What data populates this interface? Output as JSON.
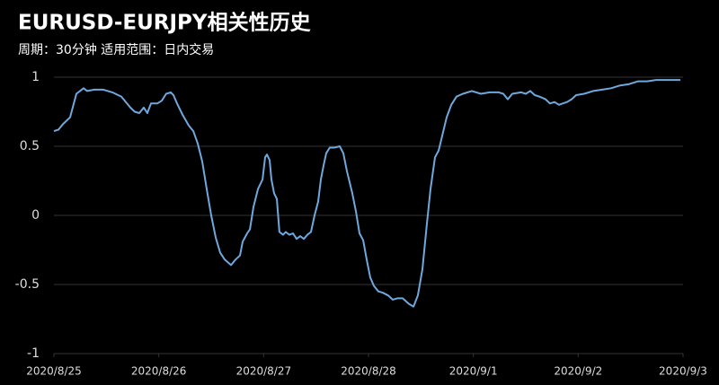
{
  "chart_data": {
    "type": "line",
    "title": "EURUSD-EURJPY相关性历史",
    "subtitle": "周期：30分钟 适用范围：日内交易",
    "color": "#6fa8dc",
    "background": "#000000",
    "grid": true,
    "xlim": [
      0,
      6
    ],
    "xticks": [
      {
        "value": 0,
        "label": "2020/8/25"
      },
      {
        "value": 1,
        "label": "2020/8/26"
      },
      {
        "value": 2,
        "label": "2020/8/27"
      },
      {
        "value": 3,
        "label": "2020/8/28"
      },
      {
        "value": 4,
        "label": "2020/9/1"
      },
      {
        "value": 5,
        "label": "2020/9/2"
      },
      {
        "value": 6,
        "label": "2020/9/3"
      }
    ],
    "ylim": [
      -1,
      1
    ],
    "yticks": [
      -1,
      -0.5,
      0,
      0.5,
      1
    ],
    "x": [
      0,
      0.043,
      0.086,
      0.154,
      0.214,
      0.283,
      0.317,
      0.386,
      0.471,
      0.557,
      0.643,
      0.686,
      0.729,
      0.771,
      0.814,
      0.857,
      0.891,
      0.926,
      0.986,
      1.029,
      1.071,
      1.114,
      1.14,
      1.174,
      1.226,
      1.286,
      1.329,
      1.371,
      1.414,
      1.457,
      1.5,
      1.543,
      1.586,
      1.629,
      1.689,
      1.731,
      1.774,
      1.8,
      1.843,
      1.869,
      1.903,
      1.946,
      1.989,
      2.014,
      2.031,
      2.057,
      2.074,
      2.1,
      2.126,
      2.151,
      2.186,
      2.211,
      2.246,
      2.28,
      2.314,
      2.349,
      2.383,
      2.417,
      2.451,
      2.486,
      2.52,
      2.546,
      2.571,
      2.597,
      2.631,
      2.674,
      2.726,
      2.76,
      2.794,
      2.846,
      2.88,
      2.914,
      2.949,
      2.983,
      3.017,
      3.051,
      3.094,
      3.137,
      3.189,
      3.231,
      3.274,
      3.326,
      3.386,
      3.429,
      3.471,
      3.514,
      3.557,
      3.591,
      3.634,
      3.669,
      3.711,
      3.746,
      3.789,
      3.84,
      3.9,
      3.986,
      4.071,
      4.157,
      4.243,
      4.286,
      4.329,
      4.371,
      4.457,
      4.5,
      4.543,
      4.586,
      4.629,
      4.689,
      4.731,
      4.774,
      4.817,
      4.851,
      4.894,
      4.937,
      4.98,
      5.057,
      5.143,
      5.229,
      5.314,
      5.4,
      5.486,
      5.571,
      5.657,
      5.743,
      5.829,
      5.914,
      5.974
    ],
    "values": [
      0.61,
      0.62,
      0.66,
      0.71,
      0.88,
      0.92,
      0.9,
      0.91,
      0.91,
      0.89,
      0.86,
      0.82,
      0.78,
      0.75,
      0.74,
      0.78,
      0.74,
      0.81,
      0.81,
      0.83,
      0.88,
      0.89,
      0.87,
      0.81,
      0.73,
      0.65,
      0.61,
      0.52,
      0.39,
      0.19,
      0,
      -0.16,
      -0.27,
      -0.32,
      -0.36,
      -0.32,
      -0.29,
      -0.19,
      -0.13,
      -0.1,
      0.06,
      0.19,
      0.26,
      0.42,
      0.44,
      0.4,
      0.26,
      0.16,
      0.12,
      -0.12,
      -0.14,
      -0.12,
      -0.14,
      -0.13,
      -0.17,
      -0.15,
      -0.17,
      -0.14,
      -0.12,
      0,
      0.1,
      0.26,
      0.36,
      0.45,
      0.49,
      0.49,
      0.5,
      0.45,
      0.32,
      0.16,
      0.03,
      -0.13,
      -0.18,
      -0.32,
      -0.45,
      -0.51,
      -0.55,
      -0.56,
      -0.58,
      -0.61,
      -0.6,
      -0.6,
      -0.64,
      -0.66,
      -0.58,
      -0.39,
      -0.06,
      0.19,
      0.42,
      0.47,
      0.6,
      0.71,
      0.8,
      0.86,
      0.88,
      0.9,
      0.88,
      0.89,
      0.89,
      0.88,
      0.84,
      0.88,
      0.89,
      0.88,
      0.9,
      0.87,
      0.86,
      0.84,
      0.81,
      0.82,
      0.8,
      0.81,
      0.82,
      0.84,
      0.87,
      0.88,
      0.9,
      0.91,
      0.92,
      0.94,
      0.95,
      0.97,
      0.97,
      0.98,
      0.98,
      0.98,
      0.98
    ]
  }
}
